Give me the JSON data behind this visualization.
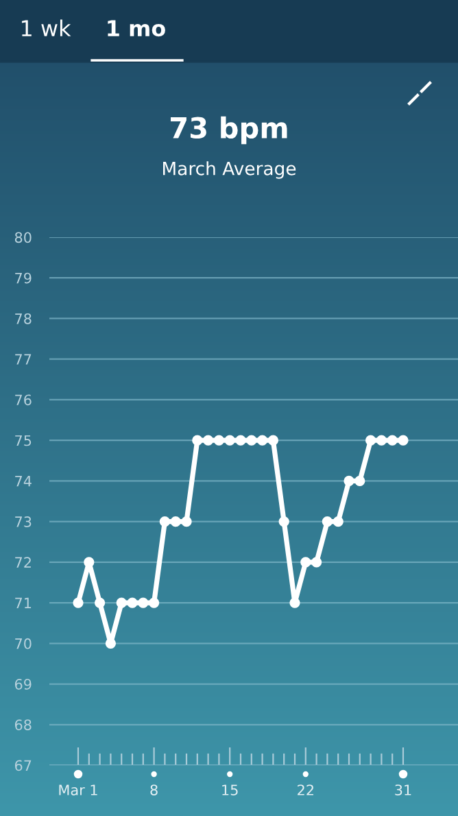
{
  "chart_data": {
    "type": "line",
    "title": "73 bpm",
    "subtitle": "March Average",
    "annotations": [
      "1 wk",
      "1 mo"
    ],
    "categories": [
      "Mar 1",
      null,
      null,
      null,
      null,
      null,
      null,
      "8",
      null,
      null,
      null,
      null,
      null,
      null,
      "15",
      null,
      null,
      null,
      null,
      null,
      null,
      "22",
      null,
      null,
      null,
      null,
      null,
      null,
      null,
      null,
      "31"
    ],
    "series": [
      {
        "color": "#ffffff",
        "values": [
          71,
          72,
          71,
          70,
          71,
          71,
          71,
          71,
          73,
          73,
          73,
          75,
          75,
          75,
          75,
          75,
          75,
          75,
          75,
          73,
          71,
          72,
          72,
          73,
          73,
          74,
          74,
          75,
          75,
          75,
          75
        ]
      }
    ],
    "ylim": [
      67,
      80
    ],
    "yticks": [
      67,
      68,
      69,
      70,
      71,
      72,
      73,
      74,
      75,
      76,
      77,
      78,
      79,
      80
    ],
    "grid": "y",
    "legend": false,
    "marker": "circle",
    "line_style": "solid"
  }
}
